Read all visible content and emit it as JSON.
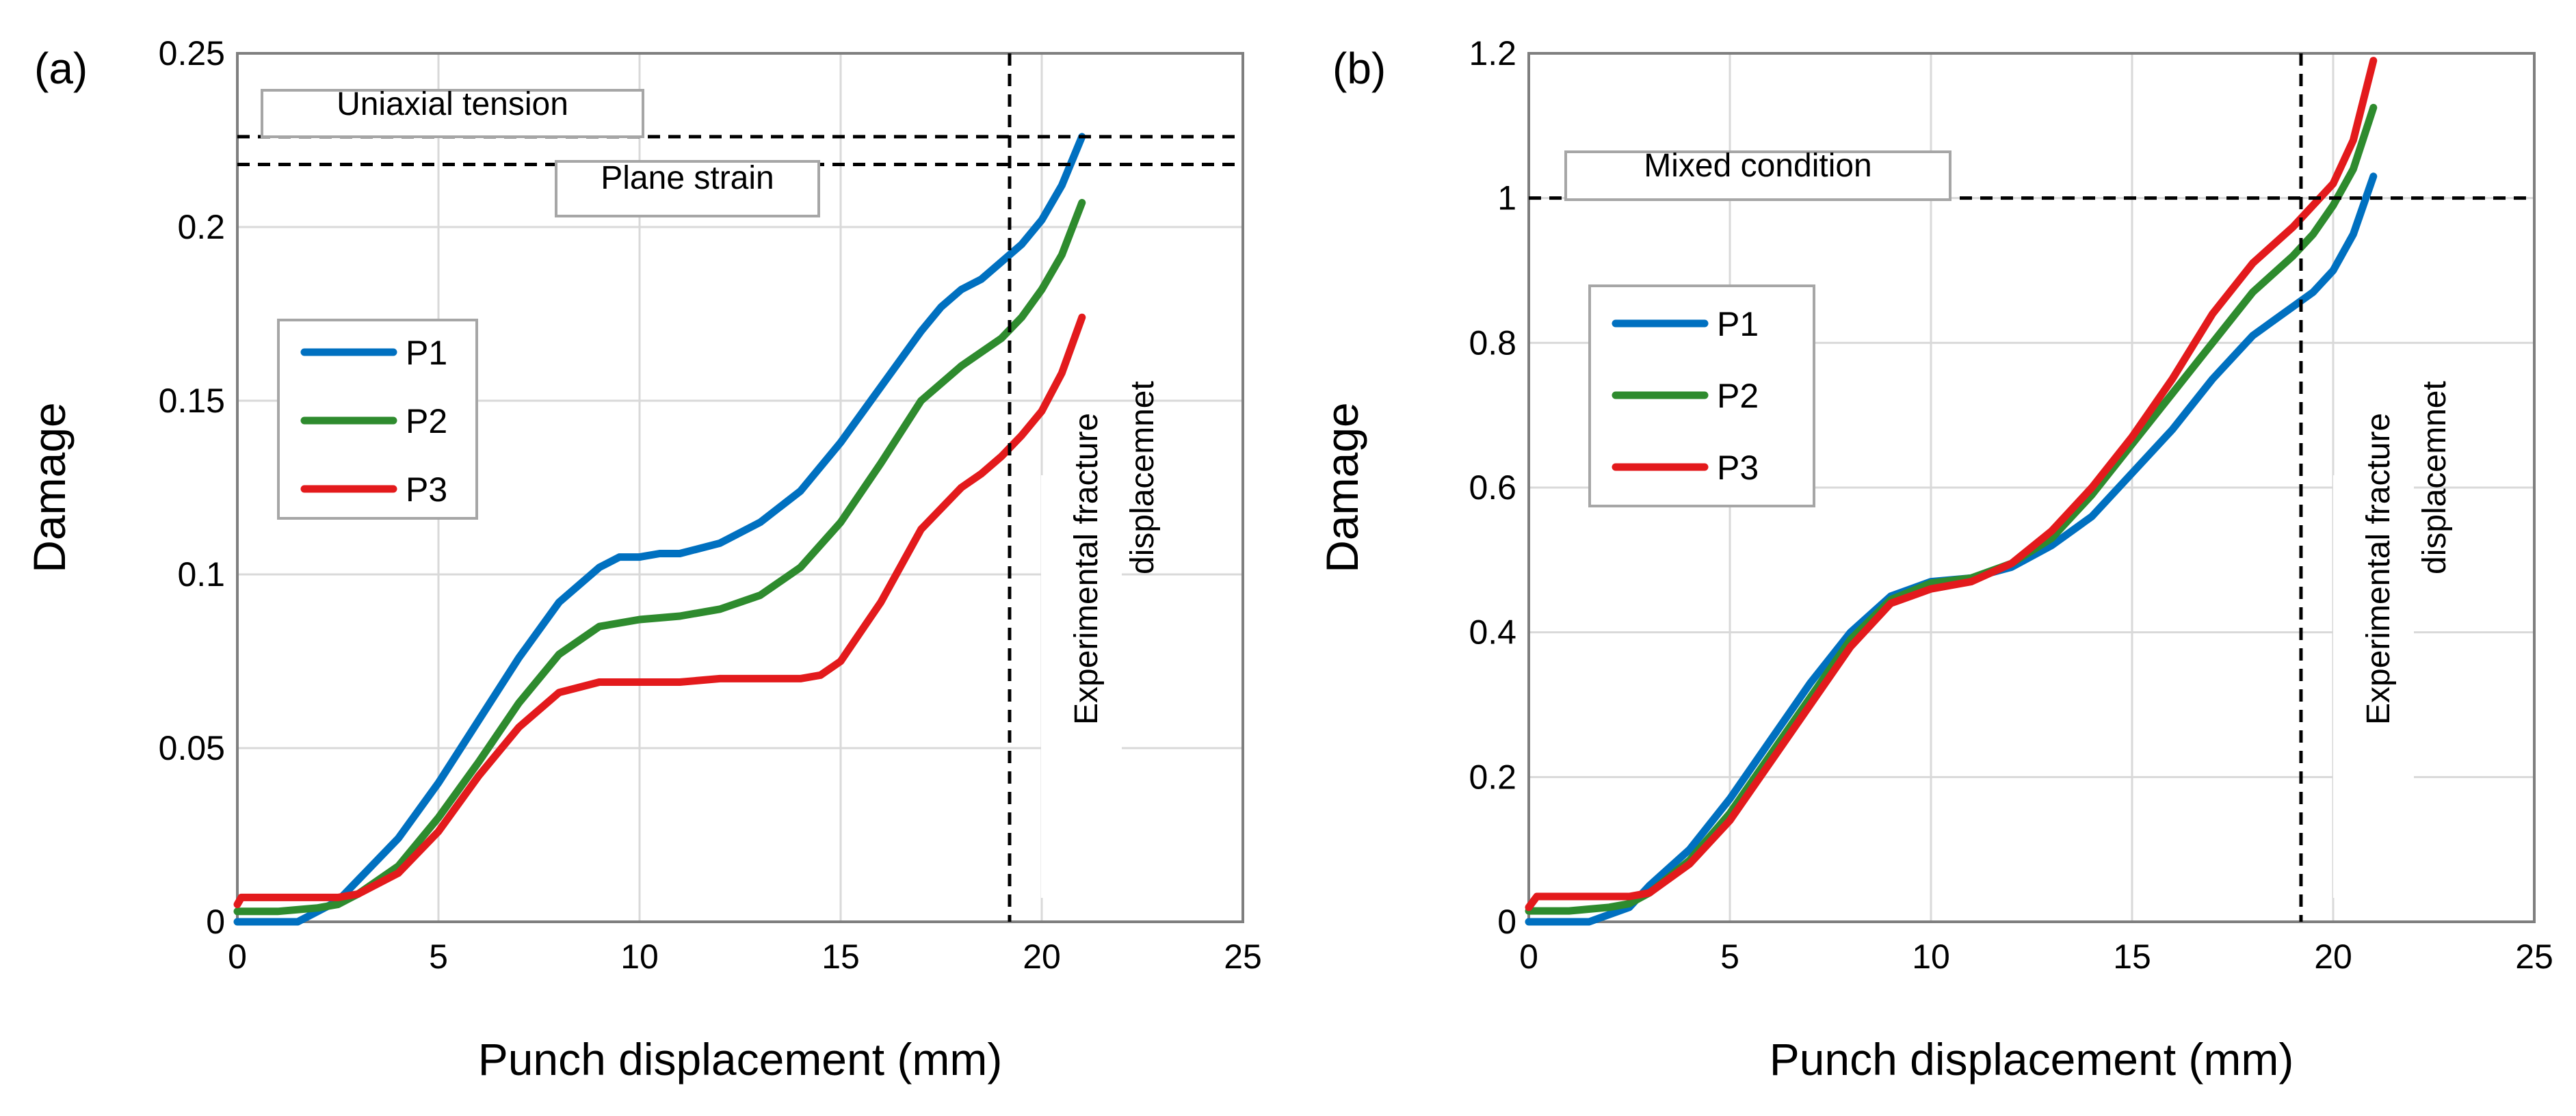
{
  "chart_data": [
    {
      "type": "line",
      "panel_label": "(a)",
      "xlabel": "Punch displacement (mm)",
      "ylabel": "Damage",
      "xlim": [
        0,
        25
      ],
      "ylim": [
        0,
        0.25
      ],
      "xticks": [
        0,
        5,
        10,
        15,
        20,
        25
      ],
      "yticks": [
        0,
        0.05,
        0.1,
        0.15,
        0.2,
        0.25
      ],
      "ytick_labels": [
        "0",
        "0.05",
        "0.1",
        "0.15",
        "0.2",
        "0.25"
      ],
      "grid": true,
      "legend_position": "middle-left",
      "series": [
        {
          "name": "P1",
          "color": "#0070C0",
          "x": [
            0,
            1.5,
            2.5,
            3,
            4,
            5,
            6,
            7,
            8,
            9,
            9.5,
            10,
            10.5,
            11,
            12,
            13,
            14,
            15,
            16,
            17,
            17.5,
            18,
            18.5,
            19,
            19.5,
            20,
            20.5,
            21
          ],
          "y": [
            0,
            0,
            0.006,
            0.012,
            0.024,
            0.04,
            0.058,
            0.076,
            0.092,
            0.102,
            0.105,
            0.105,
            0.106,
            0.106,
            0.109,
            0.115,
            0.124,
            0.138,
            0.154,
            0.17,
            0.177,
            0.182,
            0.185,
            0.19,
            0.195,
            0.202,
            0.212,
            0.226
          ]
        },
        {
          "name": "P2",
          "color": "#2E8B2E",
          "x": [
            0,
            1,
            2,
            2.5,
            3,
            4,
            5,
            6,
            7,
            8,
            9,
            10,
            11,
            12,
            13,
            14,
            15,
            16,
            17,
            18,
            19,
            19.5,
            20,
            20.5,
            21
          ],
          "y": [
            0.003,
            0.003,
            0.004,
            0.005,
            0.008,
            0.016,
            0.03,
            0.046,
            0.063,
            0.077,
            0.085,
            0.087,
            0.088,
            0.09,
            0.094,
            0.102,
            0.115,
            0.132,
            0.15,
            0.16,
            0.168,
            0.174,
            0.182,
            0.192,
            0.207
          ]
        },
        {
          "name": "P3",
          "color": "#E31A1C",
          "x": [
            0,
            0.1,
            0.5,
            2.5,
            3,
            4,
            5,
            6,
            7,
            8,
            9,
            10,
            11,
            12,
            13,
            14,
            14.5,
            15,
            16,
            17,
            18,
            18.5,
            19,
            19.5,
            20,
            20.5,
            21
          ],
          "y": [
            0.005,
            0.007,
            0.007,
            0.007,
            0.008,
            0.014,
            0.026,
            0.042,
            0.056,
            0.066,
            0.069,
            0.069,
            0.069,
            0.07,
            0.07,
            0.07,
            0.071,
            0.075,
            0.092,
            0.113,
            0.125,
            0.129,
            0.134,
            0.14,
            0.147,
            0.158,
            0.174
          ]
        }
      ],
      "annotations": [
        {
          "label": "Uniaxial tension",
          "y": 0.226
        },
        {
          "label": "Plane strain",
          "y": 0.218
        },
        {
          "label": "Experimental fracture displacemnet",
          "line1": "Experimental fracture",
          "line2": "displacemnet",
          "x": 19.2
        }
      ]
    },
    {
      "type": "line",
      "panel_label": "(b)",
      "xlabel": "Punch displacement (mm)",
      "ylabel": "Damage",
      "xlim": [
        0,
        25
      ],
      "ylim": [
        0,
        1.2
      ],
      "xticks": [
        0,
        5,
        10,
        15,
        20,
        25
      ],
      "yticks": [
        0,
        0.2,
        0.4,
        0.6,
        0.8,
        1,
        1.2
      ],
      "ytick_labels": [
        "0",
        "0.2",
        "0.4",
        "0.6",
        "0.8",
        "1",
        "1.2"
      ],
      "grid": true,
      "legend_position": "upper-left",
      "series": [
        {
          "name": "P1",
          "color": "#0070C0",
          "x": [
            0,
            1.5,
            2.5,
            3,
            4,
            5,
            6,
            7,
            8,
            9,
            10,
            11,
            12,
            13,
            14,
            15,
            16,
            17,
            18,
            18.5,
            19,
            19.5,
            20,
            20.5,
            21
          ],
          "y": [
            0,
            0,
            0.02,
            0.05,
            0.1,
            0.17,
            0.25,
            0.33,
            0.4,
            0.45,
            0.47,
            0.475,
            0.49,
            0.52,
            0.56,
            0.62,
            0.68,
            0.75,
            0.81,
            0.83,
            0.85,
            0.87,
            0.9,
            0.95,
            1.03
          ]
        },
        {
          "name": "P2",
          "color": "#2E8B2E",
          "x": [
            0,
            1,
            2,
            2.5,
            3,
            4,
            5,
            6,
            7,
            8,
            9,
            10,
            11,
            12,
            13,
            14,
            15,
            16,
            17,
            18,
            19,
            19.5,
            20,
            20.5,
            21
          ],
          "y": [
            0.015,
            0.015,
            0.02,
            0.025,
            0.04,
            0.085,
            0.15,
            0.23,
            0.31,
            0.39,
            0.445,
            0.468,
            0.475,
            0.495,
            0.53,
            0.59,
            0.66,
            0.73,
            0.8,
            0.87,
            0.92,
            0.95,
            0.99,
            1.04,
            1.125
          ]
        },
        {
          "name": "P3",
          "color": "#E31A1C",
          "x": [
            0,
            0.2,
            0.5,
            2.5,
            3,
            4,
            5,
            6,
            7,
            8,
            9,
            10,
            11,
            12,
            13,
            14,
            15,
            16,
            17,
            18,
            19,
            19.5,
            20,
            20.5,
            21
          ],
          "y": [
            0.02,
            0.035,
            0.035,
            0.035,
            0.04,
            0.08,
            0.14,
            0.22,
            0.3,
            0.38,
            0.44,
            0.46,
            0.47,
            0.495,
            0.54,
            0.6,
            0.67,
            0.75,
            0.84,
            0.91,
            0.96,
            0.99,
            1.02,
            1.08,
            1.19
          ]
        }
      ],
      "annotations": [
        {
          "label": "Mixed condition",
          "y": 1.0
        },
        {
          "label": "Experimental fracture displacemnet",
          "line1": "Experimental fracture",
          "line2": "displacemnet",
          "x": 19.2
        }
      ]
    }
  ]
}
